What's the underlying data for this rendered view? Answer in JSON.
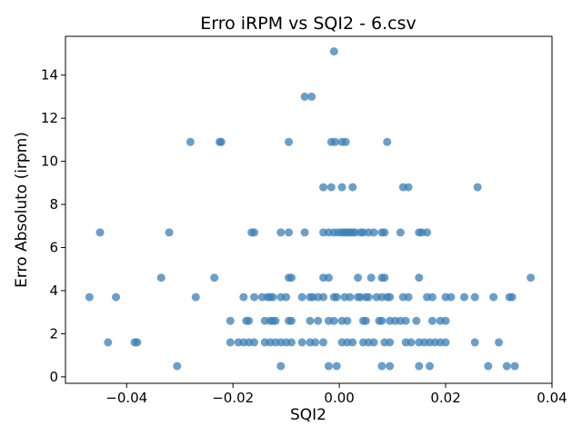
{
  "chart_data": {
    "type": "scatter",
    "title": "Erro iRPM vs SQI2 - 6.csv",
    "xlabel": "SQI2",
    "ylabel": "Erro Absoluto (irpm)",
    "xlim": [
      -0.0515,
      0.04
    ],
    "ylim": [
      -0.3,
      15.8
    ],
    "xticks": [
      -0.04,
      -0.02,
      0.0,
      0.02,
      0.04
    ],
    "xtick_labels": [
      "−0.04",
      "−0.02",
      "0.00",
      "0.02",
      "0.04"
    ],
    "yticks": [
      0,
      2,
      4,
      6,
      8,
      10,
      12,
      14
    ],
    "ytick_labels": [
      "0",
      "2",
      "4",
      "6",
      "8",
      "10",
      "12",
      "14"
    ],
    "grid": false,
    "color": "#3b7fb5",
    "points": [
      {
        "x": -0.001,
        "y": 15.1
      },
      {
        "x": -0.0065,
        "y": 13.0
      },
      {
        "x": -0.0052,
        "y": 13.0
      },
      {
        "x": -0.028,
        "y": 10.9
      },
      {
        "x": -0.0225,
        "y": 10.9
      },
      {
        "x": -0.0222,
        "y": 10.9
      },
      {
        "x": -0.0095,
        "y": 10.9
      },
      {
        "x": -0.0015,
        "y": 10.9
      },
      {
        "x": -0.0008,
        "y": 10.9
      },
      {
        "x": 0.0005,
        "y": 10.9
      },
      {
        "x": 0.0012,
        "y": 10.9
      },
      {
        "x": 0.009,
        "y": 10.9
      },
      {
        "x": -0.003,
        "y": 8.8
      },
      {
        "x": -0.0015,
        "y": 8.8
      },
      {
        "x": 0.0005,
        "y": 8.8
      },
      {
        "x": 0.0025,
        "y": 8.8
      },
      {
        "x": 0.012,
        "y": 8.8
      },
      {
        "x": 0.013,
        "y": 8.8
      },
      {
        "x": 0.026,
        "y": 8.8
      },
      {
        "x": -0.045,
        "y": 6.7
      },
      {
        "x": -0.032,
        "y": 6.7
      },
      {
        "x": -0.0165,
        "y": 6.7
      },
      {
        "x": -0.016,
        "y": 6.7
      },
      {
        "x": -0.011,
        "y": 6.7
      },
      {
        "x": -0.0095,
        "y": 6.7
      },
      {
        "x": -0.0065,
        "y": 6.7
      },
      {
        "x": -0.003,
        "y": 6.7
      },
      {
        "x": -0.002,
        "y": 6.7
      },
      {
        "x": -0.001,
        "y": 6.7
      },
      {
        "x": -0.0002,
        "y": 6.7
      },
      {
        "x": 0.0005,
        "y": 6.7
      },
      {
        "x": 0.001,
        "y": 6.7
      },
      {
        "x": 0.0015,
        "y": 6.7
      },
      {
        "x": 0.002,
        "y": 6.7
      },
      {
        "x": 0.0025,
        "y": 6.7
      },
      {
        "x": 0.003,
        "y": 6.7
      },
      {
        "x": 0.004,
        "y": 6.7
      },
      {
        "x": 0.0045,
        "y": 6.7
      },
      {
        "x": 0.0055,
        "y": 6.7
      },
      {
        "x": 0.0065,
        "y": 6.7
      },
      {
        "x": 0.008,
        "y": 6.7
      },
      {
        "x": 0.0085,
        "y": 6.7
      },
      {
        "x": 0.0115,
        "y": 6.7
      },
      {
        "x": 0.015,
        "y": 6.7
      },
      {
        "x": 0.0155,
        "y": 6.7
      },
      {
        "x": 0.0165,
        "y": 6.7
      },
      {
        "x": -0.047,
        "y": 3.7
      },
      {
        "x": -0.042,
        "y": 3.7
      },
      {
        "x": -0.027,
        "y": 3.7
      },
      {
        "x": -0.018,
        "y": 3.7
      },
      {
        "x": -0.016,
        "y": 3.7
      },
      {
        "x": -0.0145,
        "y": 3.7
      },
      {
        "x": -0.0135,
        "y": 3.7
      },
      {
        "x": -0.013,
        "y": 3.7
      },
      {
        "x": -0.0125,
        "y": 3.7
      },
      {
        "x": -0.011,
        "y": 3.7
      },
      {
        "x": -0.01,
        "y": 3.7
      },
      {
        "x": -0.007,
        "y": 3.7
      },
      {
        "x": -0.0055,
        "y": 3.7
      },
      {
        "x": -0.005,
        "y": 3.7
      },
      {
        "x": -0.004,
        "y": 3.7
      },
      {
        "x": -0.003,
        "y": 3.7
      },
      {
        "x": -0.001,
        "y": 3.7
      },
      {
        "x": -0.0005,
        "y": 3.7
      },
      {
        "x": 0.001,
        "y": 3.7
      },
      {
        "x": 0.002,
        "y": 3.7
      },
      {
        "x": 0.0035,
        "y": 3.7
      },
      {
        "x": 0.004,
        "y": 3.7
      },
      {
        "x": 0.005,
        "y": 3.7
      },
      {
        "x": 0.0055,
        "y": 3.7
      },
      {
        "x": 0.007,
        "y": 3.7
      },
      {
        "x": 0.008,
        "y": 3.7
      },
      {
        "x": 0.009,
        "y": 3.7
      },
      {
        "x": 0.0095,
        "y": 3.7
      },
      {
        "x": 0.012,
        "y": 3.7
      },
      {
        "x": 0.013,
        "y": 3.7
      },
      {
        "x": 0.0165,
        "y": 3.7
      },
      {
        "x": 0.0175,
        "y": 3.7
      },
      {
        "x": 0.02,
        "y": 3.7
      },
      {
        "x": 0.021,
        "y": 3.7
      },
      {
        "x": 0.0235,
        "y": 3.7
      },
      {
        "x": 0.0255,
        "y": 3.7
      },
      {
        "x": 0.029,
        "y": 3.7
      },
      {
        "x": 0.032,
        "y": 3.7
      },
      {
        "x": 0.0325,
        "y": 3.7
      },
      {
        "x": -0.0335,
        "y": 4.6
      },
      {
        "x": -0.0235,
        "y": 4.6
      },
      {
        "x": -0.0095,
        "y": 4.6
      },
      {
        "x": -0.009,
        "y": 4.6
      },
      {
        "x": -0.003,
        "y": 4.6
      },
      {
        "x": -0.002,
        "y": 4.6
      },
      {
        "x": 0.0035,
        "y": 4.6
      },
      {
        "x": 0.006,
        "y": 4.6
      },
      {
        "x": 0.008,
        "y": 4.6
      },
      {
        "x": 0.0085,
        "y": 4.6
      },
      {
        "x": 0.015,
        "y": 4.6
      },
      {
        "x": 0.036,
        "y": 4.6
      },
      {
        "x": -0.0205,
        "y": 2.6
      },
      {
        "x": -0.0175,
        "y": 2.6
      },
      {
        "x": -0.017,
        "y": 2.6
      },
      {
        "x": -0.014,
        "y": 2.6
      },
      {
        "x": -0.013,
        "y": 2.6
      },
      {
        "x": -0.0125,
        "y": 2.6
      },
      {
        "x": -0.012,
        "y": 2.6
      },
      {
        "x": -0.0095,
        "y": 2.6
      },
      {
        "x": -0.009,
        "y": 2.6
      },
      {
        "x": -0.0055,
        "y": 2.6
      },
      {
        "x": -0.004,
        "y": 2.6
      },
      {
        "x": -0.002,
        "y": 2.6
      },
      {
        "x": -0.001,
        "y": 2.6
      },
      {
        "x": 0.0005,
        "y": 2.6
      },
      {
        "x": 0.0015,
        "y": 2.6
      },
      {
        "x": 0.0045,
        "y": 2.6
      },
      {
        "x": 0.005,
        "y": 2.6
      },
      {
        "x": 0.0075,
        "y": 2.6
      },
      {
        "x": 0.008,
        "y": 2.6
      },
      {
        "x": 0.0095,
        "y": 2.6
      },
      {
        "x": 0.0105,
        "y": 2.6
      },
      {
        "x": 0.0115,
        "y": 2.6
      },
      {
        "x": 0.0125,
        "y": 2.6
      },
      {
        "x": 0.0145,
        "y": 2.6
      },
      {
        "x": 0.0175,
        "y": 2.6
      },
      {
        "x": 0.019,
        "y": 2.6
      },
      {
        "x": 0.02,
        "y": 2.6
      },
      {
        "x": -0.0435,
        "y": 1.6
      },
      {
        "x": -0.0385,
        "y": 1.6
      },
      {
        "x": -0.038,
        "y": 1.6
      },
      {
        "x": -0.0205,
        "y": 1.6
      },
      {
        "x": -0.019,
        "y": 1.6
      },
      {
        "x": -0.018,
        "y": 1.6
      },
      {
        "x": -0.017,
        "y": 1.6
      },
      {
        "x": -0.016,
        "y": 1.6
      },
      {
        "x": -0.014,
        "y": 1.6
      },
      {
        "x": -0.013,
        "y": 1.6
      },
      {
        "x": -0.012,
        "y": 1.6
      },
      {
        "x": -0.011,
        "y": 1.6
      },
      {
        "x": -0.01,
        "y": 1.6
      },
      {
        "x": -0.009,
        "y": 1.6
      },
      {
        "x": -0.007,
        "y": 1.6
      },
      {
        "x": -0.0055,
        "y": 1.6
      },
      {
        "x": -0.0045,
        "y": 1.6
      },
      {
        "x": -0.003,
        "y": 1.6
      },
      {
        "x": 0.0005,
        "y": 1.6
      },
      {
        "x": 0.0015,
        "y": 1.6
      },
      {
        "x": 0.0025,
        "y": 1.6
      },
      {
        "x": 0.0045,
        "y": 1.6
      },
      {
        "x": 0.0055,
        "y": 1.6
      },
      {
        "x": 0.0065,
        "y": 1.6
      },
      {
        "x": 0.0085,
        "y": 1.6
      },
      {
        "x": 0.0095,
        "y": 1.6
      },
      {
        "x": 0.0125,
        "y": 1.6
      },
      {
        "x": 0.0135,
        "y": 1.6
      },
      {
        "x": 0.015,
        "y": 1.6
      },
      {
        "x": 0.016,
        "y": 1.6
      },
      {
        "x": 0.017,
        "y": 1.6
      },
      {
        "x": 0.018,
        "y": 1.6
      },
      {
        "x": 0.019,
        "y": 1.6
      },
      {
        "x": 0.02,
        "y": 1.6
      },
      {
        "x": 0.0255,
        "y": 1.6
      },
      {
        "x": 0.03,
        "y": 1.6
      },
      {
        "x": -0.0305,
        "y": 0.5
      },
      {
        "x": -0.011,
        "y": 0.5
      },
      {
        "x": -0.002,
        "y": 0.5
      },
      {
        "x": -0.0005,
        "y": 0.5
      },
      {
        "x": 0.008,
        "y": 0.5
      },
      {
        "x": 0.0095,
        "y": 0.5
      },
      {
        "x": 0.015,
        "y": 0.5
      },
      {
        "x": 0.017,
        "y": 0.5
      },
      {
        "x": 0.028,
        "y": 0.5
      },
      {
        "x": 0.0315,
        "y": 0.5
      },
      {
        "x": 0.033,
        "y": 0.5
      }
    ]
  }
}
